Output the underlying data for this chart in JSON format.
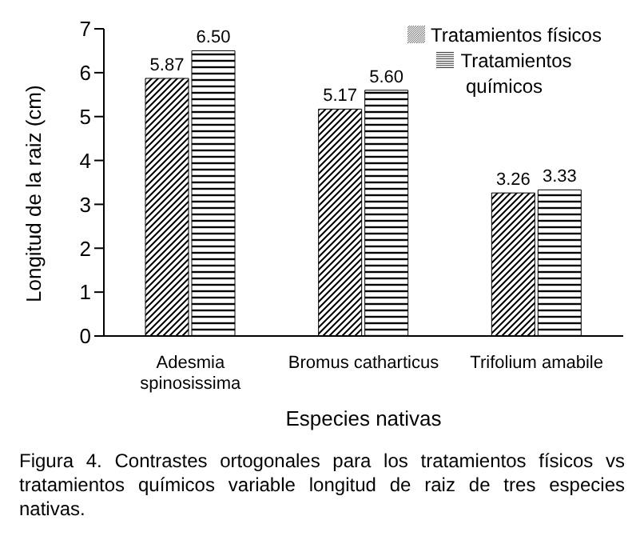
{
  "chart_data": {
    "type": "bar",
    "xlabel": "Especies nativas",
    "ylabel": "Longitud de la raiz (cm)",
    "categories": [
      "Adesmia spinosissima",
      "Bromus catharticus",
      "Trifolium amabile"
    ],
    "series": [
      {
        "name": "Tratamientos físicos",
        "color": "#000000",
        "values": [
          5.87,
          5.17,
          3.26
        ],
        "value_labels": [
          "5.87",
          "5.17",
          "3.26"
        ]
      },
      {
        "name": "Tratamientos químicos",
        "color": "#000000",
        "values": [
          6.5,
          5.6,
          3.33
        ],
        "value_labels": [
          "6.50",
          "5.60",
          "3.33"
        ]
      }
    ],
    "ylim": [
      0,
      7
    ],
    "yticks": [
      0,
      1,
      2,
      3,
      4,
      5,
      6,
      7
    ],
    "grid": false,
    "legend": "top right",
    "annotations": [
      "Figura 4. Contrastes ortogonales para los tratamientos físicos vs tratamientos químicos variable longitud de raiz de tres especies nativas."
    ]
  }
}
